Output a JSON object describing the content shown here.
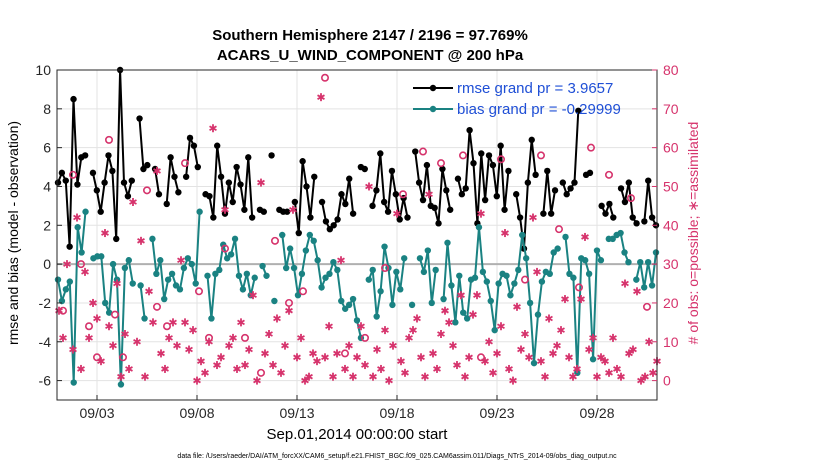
{
  "chart_data": {
    "type": "line",
    "title": "Southern Hemisphere 2147 / 2196 = 97.769%",
    "subtitle": "ACARS_U_WIND_COMPONENT @ 200 hPa",
    "xlabel": "Sep.01,2014 00:00:00 start",
    "ylabel_left": "rmse and bias (model - observation)",
    "ylabel_right": "# of obs: o=possible; ∗=assimilated",
    "footnote": "data file: /Users/raeder/DAI/ATM_forcXX/CAM6_setup/f.e21.FHIST_BGC.f09_025.CAM6assim.011/Diags_NTrS_2014-09/obs_diag_output.nc",
    "xlim": [
      1,
      31
    ],
    "ylim_left": [
      -7,
      10
    ],
    "ylim_right": [
      -5,
      80
    ],
    "xticks": [
      3,
      8,
      13,
      18,
      23,
      28
    ],
    "xtick_labels": [
      "09/03",
      "09/08",
      "09/13",
      "09/18",
      "09/23",
      "09/28"
    ],
    "yticks_left": [
      -6,
      -4,
      -2,
      0,
      2,
      4,
      6,
      8,
      10
    ],
    "yticks_right": [
      0,
      10,
      20,
      30,
      40,
      50,
      60,
      70,
      80
    ],
    "grid": true,
    "legend_position": "top-right",
    "colors": {
      "rmse": "#000000",
      "bias": "#1a8282",
      "obs": "#d6336c",
      "zero_line": "#b0b0b0"
    },
    "series": [
      {
        "name": "rmse grand pr = 3.9657",
        "axis": "left",
        "values": [
          4.2,
          4.7,
          4.3,
          0.9,
          8.5,
          4.1,
          5.5,
          5.6,
          null,
          4.7,
          3.8,
          2.7,
          4.2,
          5.6,
          4.8,
          1.3,
          10.0,
          4.2,
          3.5,
          4.3,
          null,
          7.5,
          4.9,
          5.1,
          null,
          4.9,
          3.6,
          null,
          3.1,
          5.5,
          4.5,
          3.7,
          null,
          4.5,
          6.5,
          6.1,
          5.0,
          null,
          3.6,
          3.5,
          2.4,
          6.1,
          4.5,
          2.6,
          4.2,
          3.2,
          5.0,
          4.1,
          2.8,
          5.5,
          2.4,
          null,
          2.8,
          2.7,
          null,
          5.6,
          null,
          2.8,
          2.7,
          2.7,
          null,
          3.2,
          1.6,
          5.3,
          4.0,
          2.4,
          4.5,
          null,
          3.2,
          2.2,
          1.8,
          2.0,
          2.3,
          3.6,
          3.1,
          4.4,
          2.6,
          null,
          5.0,
          4.9,
          null,
          3.0,
          3.8,
          5.7,
          3.2,
          2.7,
          4.8,
          3.6,
          2.3,
          3.4,
          2.4,
          null,
          5.8,
          4.2,
          3.3,
          5.1,
          3.0,
          2.9,
          2.1,
          4.9,
          3.8,
          2.8,
          null,
          4.4,
          3.6,
          3.9,
          6.9,
          5.2,
          2.1,
          5.7,
          3.3,
          5.6,
          5.1,
          3.5,
          6.1,
          2.8,
          4.8,
          null,
          3.6,
          2.4,
          0.8,
          4.2,
          6.4,
          4.6,
          null,
          2.6,
          4.8,
          2.6,
          3.8,
          null,
          4.2,
          3.6,
          3.9,
          4.2,
          7.9,
          null,
          4.6,
          4.7,
          null,
          null,
          3.0,
          2.6,
          3.1,
          2.4,
          null,
          3.9,
          3.2,
          4.2,
          2.4,
          2.1,
          null,
          2.2,
          4.3,
          2.4,
          2.0
        ]
      },
      {
        "name": "bias grand pr = -0.29999",
        "axis": "left",
        "values": [
          -0.8,
          -1.9,
          -1.3,
          -0.9,
          -6.1,
          1.9,
          0.6,
          2.7,
          null,
          0.3,
          0.4,
          0.4,
          -2.0,
          -2.5,
          0.0,
          -0.8,
          -6.2,
          -0.2,
          0.2,
          -1.0,
          null,
          -1.1,
          -2.8,
          null,
          1.3,
          -0.5,
          0.2,
          -1.8,
          -0.8,
          -0.5,
          -1.1,
          -1.3,
          -0.2,
          0.3,
          0.0,
          -1.0,
          2.7,
          null,
          -0.6,
          -2.8,
          -0.5,
          -0.3,
          1.0,
          0.3,
          0.5,
          1.3,
          -0.6,
          -1.3,
          -0.5,
          -1.6,
          -0.7,
          null,
          -0.1,
          -0.6,
          null,
          -1.9,
          null,
          1.5,
          -0.2,
          0.8,
          -0.2,
          -1.6,
          -0.5,
          0.7,
          1.5,
          1.2,
          0.2,
          -1.2,
          -0.7,
          -0.5,
          0.1,
          -0.3,
          -1.9,
          -2.3,
          -2.1,
          -1.8,
          -2.9,
          -3.8,
          null,
          -0.8,
          -0.3,
          -2.7,
          -1.4,
          0.9,
          -0.2,
          -2.1,
          -0.4,
          -1.3,
          0.3,
          null,
          -2.1,
          null,
          0.3,
          -0.4,
          0.7,
          -2.0,
          -0.3,
          null,
          -1.8,
          1.1,
          -1.1,
          -3.0,
          -0.6,
          -2.5,
          -2.8,
          -0.8,
          -0.7,
          1.9,
          -0.4,
          -0.9,
          -1.9,
          -3.4,
          -1.0,
          -0.5,
          -0.6,
          -1.6,
          -1.0,
          -0.3,
          1.5,
          0.3,
          -2.0,
          -5.1,
          -2.6,
          -0.9,
          -0.4,
          -0.5,
          0.6,
          0.8,
          null,
          1.4,
          -0.5,
          -0.7,
          -5.6,
          0.3,
          0.2,
          -0.5,
          -4.9,
          0.7,
          0.2,
          null,
          1.3,
          1.3,
          1.5,
          1.6,
          0.6,
          0.1,
          null,
          -0.8,
          0.1,
          -1.2,
          0.1,
          -1.1,
          0.6
        ]
      },
      {
        "name": "obs possible (o)",
        "axis": "right",
        "marker": "circle",
        "x": [
          1.3,
          1.8,
          2.2,
          2.6,
          3.0,
          3.6,
          3.9,
          4.3,
          5.5,
          6.0,
          6.5,
          7.4,
          8.1,
          8.6,
          9.4,
          10.4,
          11.2,
          11.9,
          12.6,
          13.3,
          14.4,
          15.4,
          16.4,
          17.4,
          18.3,
          19.3,
          20.2,
          21.3,
          22.2,
          23.2,
          24.4,
          25.2,
          26.1,
          27.1,
          27.7,
          28.6,
          29.7,
          30.5
        ],
        "values": [
          18,
          53,
          30,
          14,
          6,
          62,
          17,
          6,
          49,
          19,
          14,
          56,
          23,
          11,
          34,
          11,
          2,
          36,
          20,
          23,
          78,
          7,
          11,
          29,
          48,
          59,
          56,
          58,
          6,
          57,
          26,
          58,
          39,
          24,
          60,
          53,
          47,
          19
        ]
      },
      {
        "name": "obs assimilated (∗)",
        "axis": "right",
        "marker": "asterisk",
        "x": [
          1.1,
          1.3,
          1.5,
          1.8,
          2.0,
          2.2,
          2.4,
          2.6,
          2.8,
          3.0,
          3.2,
          3.4,
          3.6,
          3.8,
          4.0,
          4.2,
          4.4,
          4.6,
          4.8,
          5.0,
          5.2,
          5.4,
          5.6,
          5.8,
          6.0,
          6.2,
          6.4,
          6.6,
          6.8,
          7.0,
          7.2,
          7.4,
          7.6,
          7.8,
          8.0,
          8.2,
          8.4,
          8.6,
          8.8,
          9.0,
          9.2,
          9.4,
          9.6,
          9.8,
          10.0,
          10.2,
          10.4,
          10.6,
          10.8,
          11.0,
          11.2,
          11.4,
          11.6,
          11.8,
          12.0,
          12.2,
          12.4,
          12.6,
          12.8,
          13.0,
          13.2,
          13.4,
          13.6,
          13.8,
          14.0,
          14.2,
          14.4,
          14.6,
          14.8,
          15.0,
          15.2,
          15.4,
          15.6,
          15.8,
          16.0,
          16.2,
          16.4,
          16.6,
          16.8,
          17.0,
          17.2,
          17.4,
          17.6,
          17.8,
          18.0,
          18.2,
          18.4,
          18.6,
          18.8,
          19.0,
          19.2,
          19.4,
          19.6,
          19.8,
          20.0,
          20.2,
          20.4,
          20.6,
          20.8,
          21.0,
          21.2,
          21.4,
          21.6,
          21.8,
          22.0,
          22.2,
          22.4,
          22.6,
          22.8,
          23.0,
          23.2,
          23.4,
          23.6,
          23.8,
          24.0,
          24.2,
          24.4,
          24.6,
          24.8,
          25.0,
          25.2,
          25.4,
          25.6,
          25.8,
          26.0,
          26.2,
          26.4,
          26.6,
          26.8,
          27.0,
          27.2,
          27.4,
          27.6,
          27.8,
          28.0,
          28.2,
          28.4,
          28.6,
          28.8,
          29.0,
          29.2,
          29.4,
          29.6,
          29.8,
          30.0,
          30.2,
          30.4,
          30.6,
          30.8,
          31.0
        ],
        "values": [
          18,
          11,
          30,
          8,
          42,
          3,
          28,
          11,
          20,
          16,
          5,
          38,
          14,
          9,
          25,
          1,
          12,
          3,
          46,
          10,
          36,
          1,
          23,
          15,
          54,
          7,
          3,
          11,
          15,
          9,
          31,
          15,
          8,
          13,
          0,
          5,
          2,
          10,
          65,
          4,
          6,
          44,
          9,
          11,
          3,
          15,
          4,
          8,
          22,
          0,
          51,
          7,
          12,
          4,
          16,
          2,
          9,
          18,
          44,
          6,
          11,
          0,
          1,
          7,
          5,
          73,
          6,
          14,
          1,
          7,
          31,
          3,
          9,
          1,
          6,
          14,
          4,
          50,
          1,
          8,
          3,
          13,
          0,
          9,
          43,
          5,
          2,
          11,
          13,
          16,
          6,
          1,
          48,
          7,
          3,
          12,
          18,
          15,
          9,
          4,
          22,
          1,
          6,
          17,
          22,
          43,
          5,
          10,
          2,
          7,
          14,
          38,
          3,
          0,
          19,
          8,
          12,
          6,
          42,
          28,
          5,
          1,
          16,
          7,
          9,
          13,
          21,
          6,
          1,
          3,
          21,
          37,
          8,
          11,
          1,
          6,
          5,
          2,
          11,
          3,
          1,
          25,
          7,
          8,
          23,
          0,
          1,
          10,
          2,
          5
        ]
      }
    ]
  }
}
